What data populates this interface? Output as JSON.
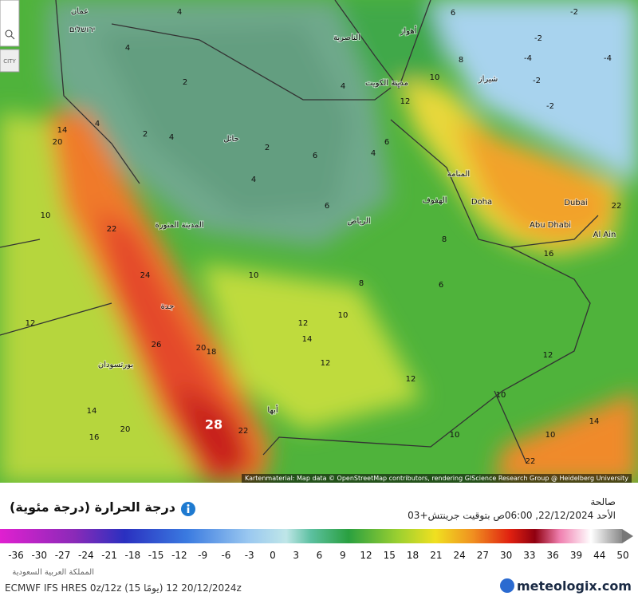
{
  "map": {
    "cities": [
      "عمان",
      "ירושלים",
      "الناصرية",
      "أهواز",
      "شيراز",
      "مدينة الكويت",
      "حائل",
      "المنامة",
      "الهفوف",
      "Doha",
      "Dubai",
      "Abu Dhabi",
      "Al Ain",
      "الرياض",
      "المدينة المنورة",
      "جدة",
      "بورتسودان",
      "أبها"
    ],
    "values": [
      4,
      2,
      4,
      4,
      2,
      4,
      2,
      4,
      4,
      6,
      4,
      6,
      6,
      14,
      20,
      10,
      22,
      24,
      26,
      20,
      18,
      28,
      22,
      20,
      16,
      14,
      12,
      10,
      8,
      12,
      14,
      10,
      12,
      12,
      12,
      10,
      10,
      10,
      14,
      22,
      16,
      22,
      10,
      12,
      8,
      -2,
      -4,
      -2,
      -2,
      -2,
      -4,
      6,
      8,
      6
    ],
    "attribution": "Kartenmaterial: Map data © OpenStreetMap contributors, rendering GIScience Research Group @ Heidelberg University",
    "badge": "CITY"
  },
  "panel": {
    "title": "درجة الحرارة (درجة مئوية)",
    "valid_label": "صالحة",
    "valid_time": "الأحد 22/12/2024, 06:00ص بتوقيت جرينتش+03",
    "region": "المملكة العربية السعودية",
    "model": "ECMWF IFS HRES 0z/12z (15 يومًا) 20/12/2024 12z"
  },
  "legend": {
    "ticks": [
      -36,
      -30,
      -27,
      -24,
      -21,
      -18,
      -15,
      -12,
      -9,
      -6,
      -3,
      0,
      3,
      6,
      9,
      12,
      15,
      18,
      21,
      24,
      27,
      30,
      33,
      36,
      39,
      44,
      50
    ]
  },
  "brand": "meteologix.com"
}
